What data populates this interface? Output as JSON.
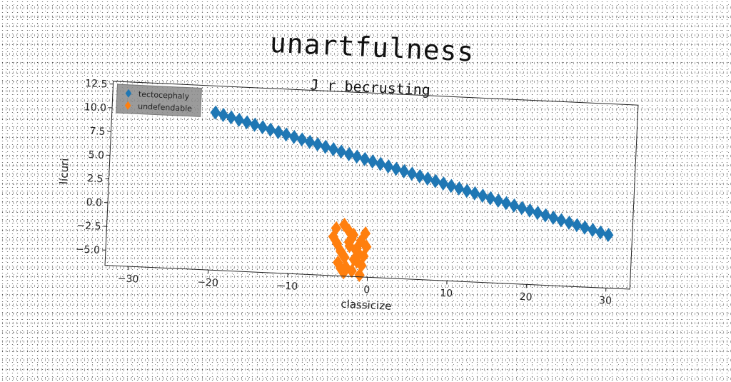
{
  "chart_data": {
    "type": "scatter",
    "title": "unartfulness",
    "subtitle": "J r becrusting",
    "xlabel": "classicize",
    "ylabel": "lícuri",
    "xlim": [
      -33,
      33
    ],
    "ylim": [
      -6.6,
      12.8
    ],
    "xticks": [
      -30,
      -20,
      -10,
      0,
      10,
      20,
      30
    ],
    "yticks": [
      -5.0,
      -2.5,
      0.0,
      2.5,
      5.0,
      7.5,
      10.0,
      12.5
    ],
    "xtick_labels": [
      "−30",
      "−20",
      "−10",
      "0",
      "10",
      "20",
      "30"
    ],
    "ytick_labels": [
      "−5.0",
      "−2.5",
      "0.0",
      "2.5",
      "5.0",
      "7.5",
      "10.0",
      "12.5"
    ],
    "grid": false,
    "legend_position": "top-left",
    "series": [
      {
        "name": "tectocephaly",
        "color": "#1f77b4",
        "marker": "diamond",
        "x": [
          -20,
          -19,
          -18,
          -17,
          -16,
          -15,
          -14,
          -13,
          -12,
          -11,
          -10,
          -9,
          -8,
          -7,
          -6,
          -5,
          -4,
          -3,
          -2,
          -1,
          0,
          1,
          2,
          3,
          4,
          5,
          6,
          7,
          8,
          9,
          10,
          11,
          12,
          13,
          14,
          15,
          16,
          17,
          18,
          19,
          20,
          21,
          22,
          23,
          24,
          25,
          26,
          27,
          28,
          29,
          30
        ],
        "y": [
          10.0,
          9.78,
          9.56,
          9.34,
          9.12,
          8.9,
          8.68,
          8.46,
          8.24,
          8.02,
          7.8,
          7.58,
          7.36,
          7.14,
          6.92,
          6.7,
          6.48,
          6.26,
          6.04,
          5.82,
          5.6,
          5.38,
          5.16,
          4.94,
          4.72,
          4.5,
          4.28,
          4.06,
          3.84,
          3.62,
          3.4,
          3.18,
          2.96,
          2.74,
          2.52,
          2.3,
          2.08,
          1.86,
          1.64,
          1.42,
          1.2,
          0.98,
          0.76,
          0.54,
          0.32,
          0.1,
          -0.12,
          -0.34,
          -0.56,
          -0.78,
          -1.0
        ]
      },
      {
        "name": "undefendable",
        "color": "#ff7f0e",
        "marker": "diamond",
        "x": [
          -4.5,
          -4.0,
          -3.5,
          -3.0,
          -2.5,
          -2.0,
          -1.5,
          -1.0,
          -0.5,
          -4.2,
          -3.2,
          -2.2,
          -1.2,
          -0.3,
          -3.8,
          -2.8,
          -1.8,
          -0.8,
          -3.0,
          -2.0,
          -1.0,
          -2.6,
          -1.6,
          -0.6,
          -3.4,
          -2.4,
          -1.4
        ],
        "y": [
          -2.5,
          -3.2,
          -4.0,
          -4.6,
          -3.0,
          -2.2,
          -3.6,
          -2.8,
          -2.0,
          -1.6,
          -1.2,
          -2.6,
          -4.2,
          -3.4,
          -5.2,
          -5.6,
          -4.8,
          -5.4,
          -6.2,
          -6.0,
          -6.4,
          -1.8,
          -3.8,
          -4.4,
          -5.8,
          -3.4,
          -5.0
        ]
      }
    ]
  }
}
